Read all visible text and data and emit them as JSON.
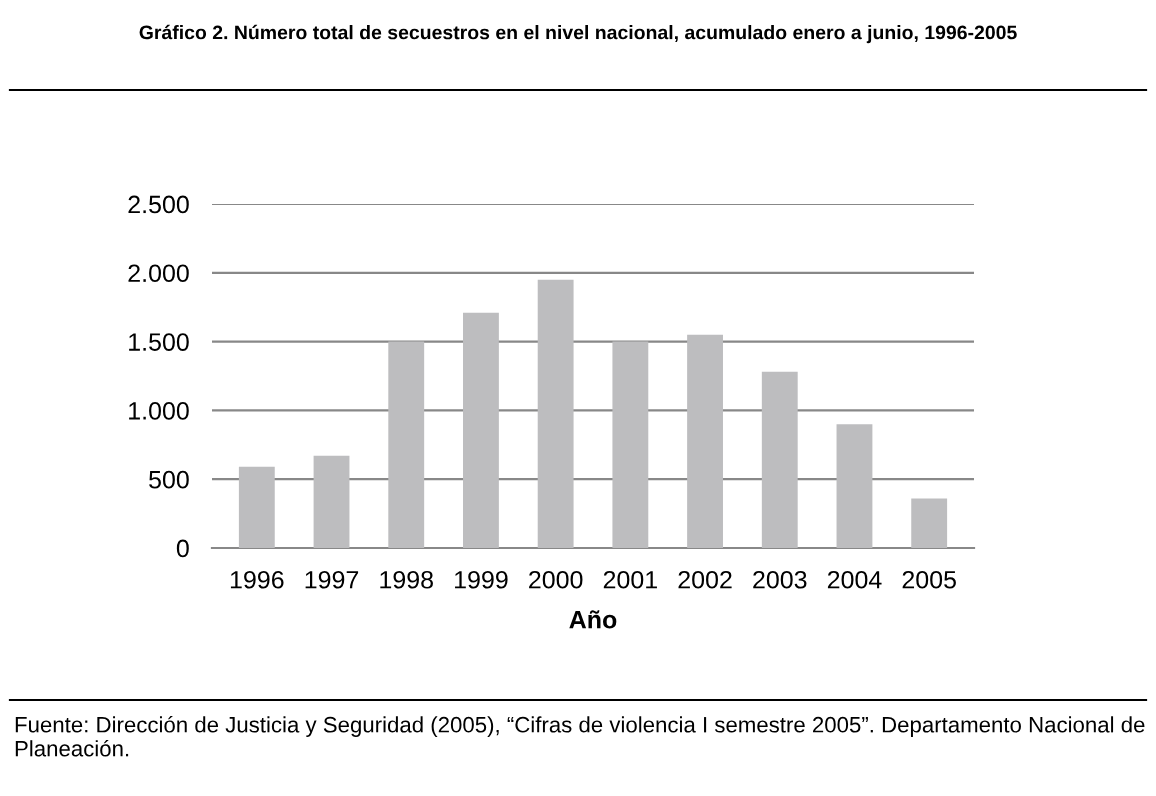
{
  "chart_data": {
    "type": "bar",
    "title": "Gráfico 2. Número total de secuestros en el nivel nacional, acumulado enero a junio, 1996-2005",
    "xlabel": "Año",
    "categories": [
      "1996",
      "1997",
      "1998",
      "1999",
      "2000",
      "2001",
      "2002",
      "2003",
      "2004",
      "2005"
    ],
    "values": [
      590,
      670,
      1500,
      1710,
      1950,
      1500,
      1550,
      1280,
      900,
      360
    ],
    "color": "#bdbdbf",
    "ylim": [
      0,
      2500
    ],
    "yticks": [
      0,
      500,
      {
        "value": 1000,
        "label": "1.000"
      },
      {
        "value": 1500,
        "label": "1.500"
      },
      {
        "value": 2000,
        "label": "2.000"
      },
      {
        "value": 2500,
        "label": "2.500"
      }
    ],
    "grid": "y",
    "annotations": [
      "Fuente: Dirección de Justicia y Seguridad (2005), “Cifras de violencia I semestre 2005”. Departamento Nacional de Planeación."
    ]
  }
}
